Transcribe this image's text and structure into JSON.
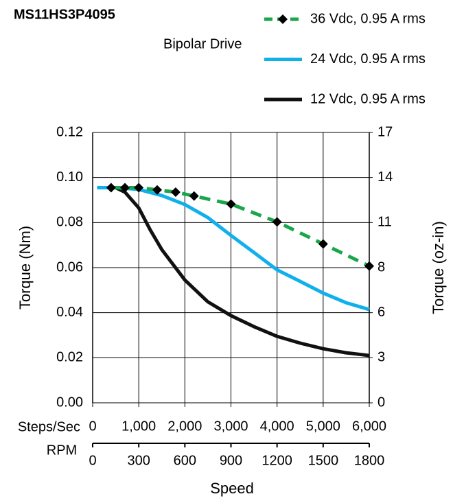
{
  "chart_data": {
    "type": "line",
    "title": "MS11HS3P4095",
    "subtitle": "Bipolar Drive",
    "xlabel": "Speed",
    "xlabel_primary": "Steps/Sec",
    "xlabel_secondary": "RPM",
    "ylabel": "Torque (Nm)",
    "y2label": "Torque (oz-in)",
    "xlim": [
      0,
      6000
    ],
    "xticks": [
      0,
      {
        "value": 1000,
        "label": "1,000"
      },
      {
        "value": 2000,
        "label": "2,000"
      },
      {
        "value": 3000,
        "label": "3,000"
      },
      {
        "value": 4000,
        "label": "4,000"
      },
      {
        "value": 5000,
        "label": "5,000"
      },
      {
        "value": 6000,
        "label": "6,000"
      }
    ],
    "x2lim": [
      0,
      1800
    ],
    "x2ticks": [
      0,
      300,
      600,
      900,
      1200,
      1500,
      1800
    ],
    "ylim": [
      0,
      0.12
    ],
    "yticks": [
      {
        "value": 0,
        "label": "0.00"
      },
      {
        "value": 0.02,
        "label": "0.02"
      },
      {
        "value": 0.04,
        "label": "0.04"
      },
      {
        "value": 0.06,
        "label": "0.06"
      },
      {
        "value": 0.08,
        "label": "0.08"
      },
      {
        "value": 0.1,
        "label": "0.10"
      },
      {
        "value": 0.12,
        "label": "0.12"
      }
    ],
    "y2lim": [
      0,
      16.992
    ],
    "y2ticks": [
      0,
      {
        "value": 2.832,
        "label": "3"
      },
      {
        "value": 5.664,
        "label": "6"
      },
      {
        "value": 8.496,
        "label": "8"
      },
      {
        "value": 11.328,
        "label": "11"
      },
      {
        "value": 14.16,
        "label": "14"
      },
      {
        "value": 16.992,
        "label": "17"
      }
    ],
    "grid": true,
    "series": [
      {
        "name": "36 Vdc, 0.95 A rms",
        "color": "#1aa64a",
        "dashed": true,
        "markers": true,
        "x": [
          400,
          700,
          1000,
          1400,
          1800,
          2200,
          3000,
          4000,
          5000,
          6000
        ],
        "values": [
          0.0955,
          0.0955,
          0.0955,
          0.0945,
          0.0935,
          0.0918,
          0.0882,
          0.0803,
          0.0705,
          0.0607
        ]
      },
      {
        "name": "24 Vdc, 0.95 A rms",
        "color": "#10b0ec",
        "dashed": false,
        "markers": false,
        "x": [
          100,
          500,
          1000,
          1500,
          2000,
          2500,
          3000,
          3500,
          4000,
          4500,
          5000,
          5500,
          6000
        ],
        "values": [
          0.0955,
          0.0955,
          0.0947,
          0.092,
          0.088,
          0.0822,
          0.0743,
          0.0667,
          0.059,
          0.0539,
          0.0487,
          0.0444,
          0.0414
        ]
      },
      {
        "name": "12 Vdc, 0.95 A rms",
        "color": "#111111",
        "dashed": false,
        "markers": false,
        "x": [
          100,
          500,
          700,
          1000,
          1250,
          1500,
          2000,
          2500,
          3000,
          3500,
          4000,
          4500,
          5000,
          5500,
          6000
        ],
        "values": [
          0.0955,
          0.0955,
          0.0935,
          0.0865,
          0.0767,
          0.068,
          0.0545,
          0.0448,
          0.0387,
          0.0338,
          0.0295,
          0.0265,
          0.024,
          0.0222,
          0.021
        ]
      }
    ]
  }
}
